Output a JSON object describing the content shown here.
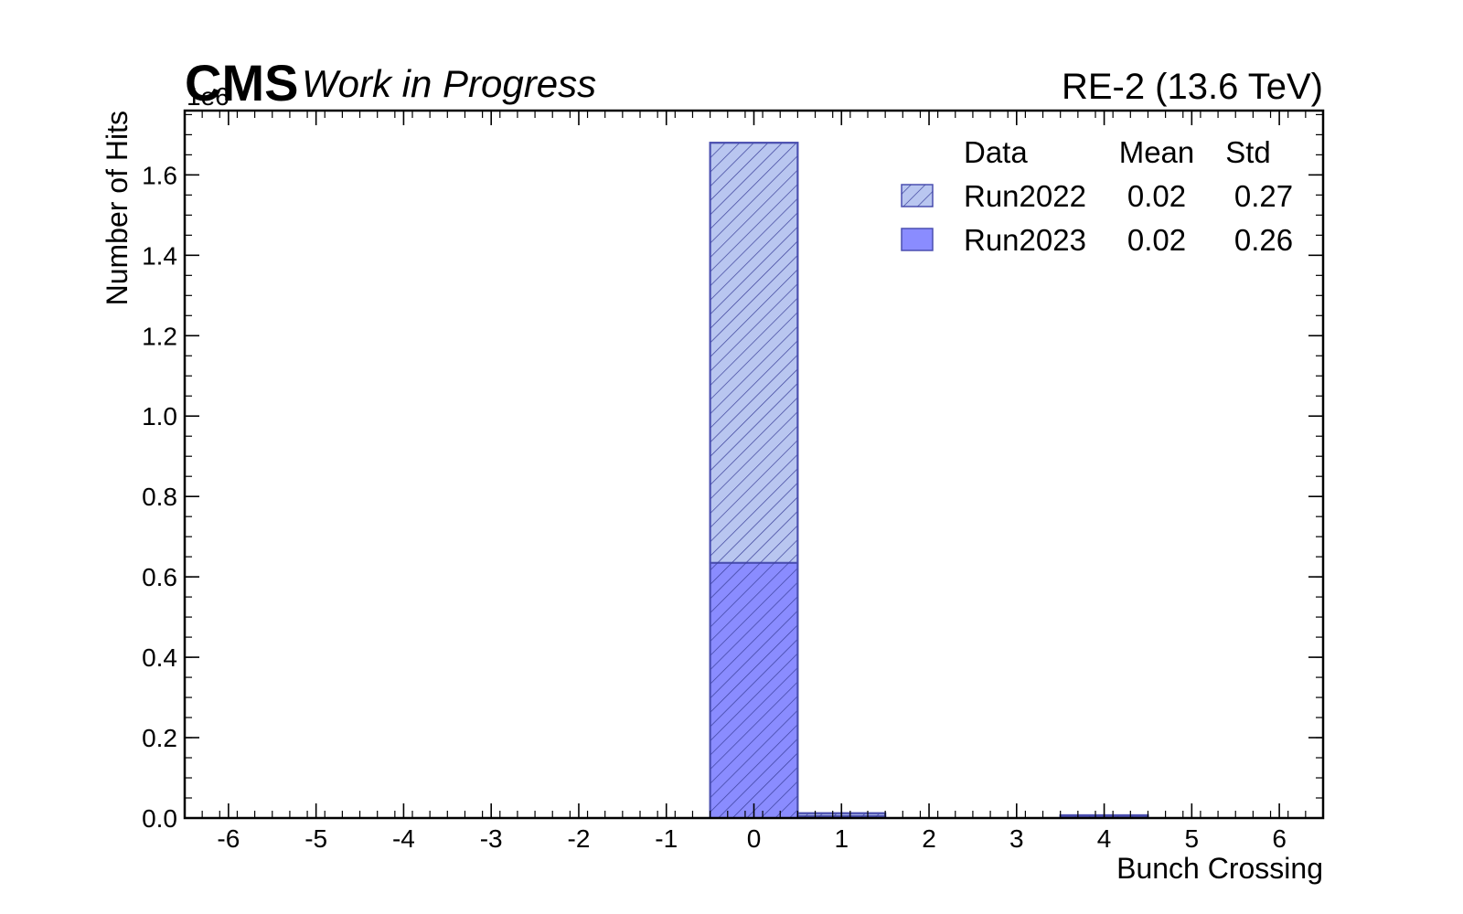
{
  "header": {
    "experiment": "CMS",
    "extra_text": "Work in Progress",
    "right_text": "RE-2 (13.6 TeV)",
    "y_scale_label": "1e6"
  },
  "chart_data": {
    "type": "bar",
    "histogram": true,
    "stacked": true,
    "xlabel": "Bunch Crossing",
    "ylabel": "Number of Hits",
    "xlim": [
      -6.5,
      6.5
    ],
    "ylim": [
      0,
      1.76
    ],
    "y_multiplier": "1e6",
    "x_ticks": [
      -6,
      -5,
      -4,
      -3,
      -2,
      -1,
      0,
      1,
      2,
      3,
      4,
      5,
      6
    ],
    "x_tick_labels": [
      "-6",
      "-5",
      "-4",
      "-3",
      "-2",
      "-1",
      "0",
      "1",
      "2",
      "3",
      "4",
      "5",
      "6"
    ],
    "y_ticks": [
      0,
      0.2,
      0.4,
      0.6,
      0.8,
      1.0,
      1.2,
      1.4,
      1.6
    ],
    "y_tick_labels": [
      "0.0",
      "0.2",
      "0.4",
      "0.6",
      "0.8",
      "1.0",
      "1.2",
      "1.4",
      "1.6"
    ],
    "bin_centers": [
      -6,
      -5,
      -4,
      -3,
      -2,
      -1,
      0,
      1,
      2,
      3,
      4,
      5,
      6
    ],
    "series": [
      {
        "name": "Run2023",
        "fill": "#8a8cff",
        "hatch": false,
        "values": [
          0,
          0,
          0,
          0,
          0,
          0,
          0.635,
          0.005,
          0,
          0,
          0.003,
          0,
          0
        ]
      },
      {
        "name": "Run2022",
        "fill": "#b9c6f0",
        "hatch": true,
        "values": [
          0,
          0,
          0,
          0,
          0,
          0,
          1.045,
          0.007,
          0,
          0,
          0.004,
          0,
          0
        ]
      }
    ],
    "grid": false,
    "legend_position": "top-right",
    "legend": {
      "header": [
        "Data",
        "Mean",
        "Std"
      ],
      "rows": [
        {
          "name": "Run2022",
          "mean": "0.02",
          "std": "0.27"
        },
        {
          "name": "Run2023",
          "mean": "0.02",
          "std": "0.26"
        }
      ]
    },
    "colors": {
      "edge": "#4a4fb0",
      "hatch": "#3a3f9a"
    }
  }
}
